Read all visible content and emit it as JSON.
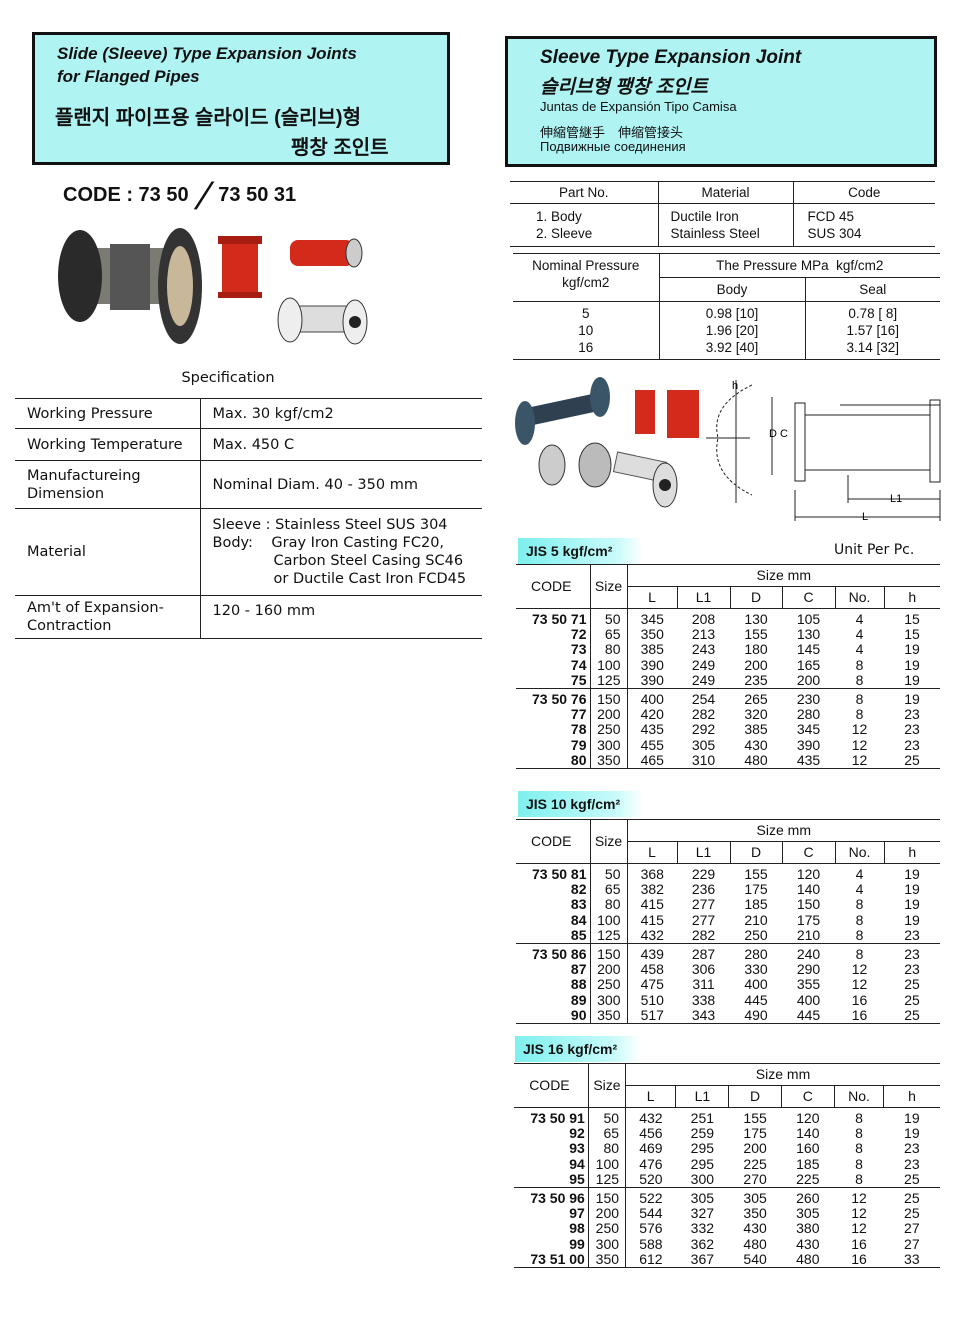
{
  "left_header": {
    "title_en_1": "Slide (Sleeve) Type Expansion Joints",
    "title_en_2": "for Flanged Pipes",
    "title_ko_1": "플랜지 파이프용 슬라이드 (슬리브)형",
    "title_ko_2": "팽창 조인트"
  },
  "code_line": {
    "prefix": "CODE : 73 50",
    "slash": "/",
    "alt": "73 50 31"
  },
  "specification": {
    "title": "Specification",
    "rows": [
      {
        "key": "Working Pressure",
        "value": "Max. 30 kgf/cm2"
      },
      {
        "key": "Working Temperature",
        "value": "Max. 450 C"
      },
      {
        "key": "Manufactureing Dimension",
        "value": "Nominal Diam. 40 - 350 mm"
      },
      {
        "key": "Material",
        "value_lines": [
          "Sleeve : Stainless Steel SUS 304",
          "Body:    Gray Iron Casting FC20,",
          "Carbon Steel Casing SC46",
          "or Ductile Cast Iron FCD45"
        ]
      },
      {
        "key": "Am't of Expansion-Contraction",
        "value": "120 - 160 mm"
      }
    ]
  },
  "right_header": {
    "title_en": "Sleeve Type Expansion Joint",
    "title_ko": "슬리브형 팽창 조인트",
    "title_es": "Juntas de Expansión Tipo Camisa",
    "title_cjk": "伸縮管継手　伸缩管接头",
    "title_ru": "Подвижные соединения"
  },
  "parts": {
    "headers": [
      "Part No.",
      "Material",
      "Code"
    ],
    "rows": [
      [
        "1. Body",
        "Ductile Iron",
        "FCD 45"
      ],
      [
        "2. Sleeve",
        "Stainless Steel",
        "SUS 304"
      ]
    ]
  },
  "pressure": {
    "h1": "Nominal Pressure",
    "h1b": "kgf/cm2",
    "h2": "The Pressure MPa  kgf/cm2",
    "body": "Body",
    "seal": "Seal",
    "rows": [
      [
        "5",
        "0.98 [10]",
        "0.78 [ 8]"
      ],
      [
        "10",
        "1.96 [20]",
        "1.57 [16]"
      ],
      [
        "16",
        "3.92 [40]",
        "3.14 [32]"
      ]
    ]
  },
  "diagram": {
    "labels": [
      "h",
      "D",
      "C",
      "L1",
      "L"
    ]
  },
  "unit": "Unit Per Pc.",
  "colors": {
    "header_bg": "#b0f3f3",
    "jis_bg": "#7ef0ee",
    "product_red": "#d42a1c"
  },
  "col_headers": {
    "code": "CODE",
    "size": "Size",
    "size_mm": "Size mm",
    "cols": [
      "L",
      "L1",
      "D",
      "C",
      "No.",
      "h"
    ]
  },
  "tables": [
    {
      "label": "JIS 5 kgf/cm²",
      "groups": [
        [
          [
            "73 50 71",
            "50",
            "345",
            "208",
            "130",
            "105",
            "4",
            "15"
          ],
          [
            "72",
            "65",
            "350",
            "213",
            "155",
            "130",
            "4",
            "15"
          ],
          [
            "73",
            "80",
            "385",
            "243",
            "180",
            "145",
            "4",
            "19"
          ],
          [
            "74",
            "100",
            "390",
            "249",
            "200",
            "165",
            "8",
            "19"
          ],
          [
            "75",
            "125",
            "390",
            "249",
            "235",
            "200",
            "8",
            "19"
          ]
        ],
        [
          [
            "73 50 76",
            "150",
            "400",
            "254",
            "265",
            "230",
            "8",
            "19"
          ],
          [
            "77",
            "200",
            "420",
            "282",
            "320",
            "280",
            "8",
            "23"
          ],
          [
            "78",
            "250",
            "435",
            "292",
            "385",
            "345",
            "12",
            "23"
          ],
          [
            "79",
            "300",
            "455",
            "305",
            "430",
            "390",
            "12",
            "23"
          ],
          [
            "80",
            "350",
            "465",
            "310",
            "480",
            "435",
            "12",
            "25"
          ]
        ]
      ]
    },
    {
      "label": "JIS 10 kgf/cm²",
      "groups": [
        [
          [
            "73 50 81",
            "50",
            "368",
            "229",
            "155",
            "120",
            "4",
            "19"
          ],
          [
            "82",
            "65",
            "382",
            "236",
            "175",
            "140",
            "4",
            "19"
          ],
          [
            "83",
            "80",
            "415",
            "277",
            "185",
            "150",
            "8",
            "19"
          ],
          [
            "84",
            "100",
            "415",
            "277",
            "210",
            "175",
            "8",
            "19"
          ],
          [
            "85",
            "125",
            "432",
            "282",
            "250",
            "210",
            "8",
            "23"
          ]
        ],
        [
          [
            "73 50 86",
            "150",
            "439",
            "287",
            "280",
            "240",
            "8",
            "23"
          ],
          [
            "87",
            "200",
            "458",
            "306",
            "330",
            "290",
            "12",
            "23"
          ],
          [
            "88",
            "250",
            "475",
            "311",
            "400",
            "355",
            "12",
            "25"
          ],
          [
            "89",
            "300",
            "510",
            "338",
            "445",
            "400",
            "16",
            "25"
          ],
          [
            "90",
            "350",
            "517",
            "343",
            "490",
            "445",
            "16",
            "25"
          ]
        ]
      ]
    },
    {
      "label": "JIS 16 kgf/cm²",
      "groups": [
        [
          [
            "73 50 91",
            "50",
            "432",
            "251",
            "155",
            "120",
            "8",
            "19"
          ],
          [
            "92",
            "65",
            "456",
            "259",
            "175",
            "140",
            "8",
            "19"
          ],
          [
            "93",
            "80",
            "469",
            "295",
            "200",
            "160",
            "8",
            "23"
          ],
          [
            "94",
            "100",
            "476",
            "295",
            "225",
            "185",
            "8",
            "23"
          ],
          [
            "95",
            "125",
            "520",
            "300",
            "270",
            "225",
            "8",
            "25"
          ]
        ],
        [
          [
            "73 50 96",
            "150",
            "522",
            "305",
            "305",
            "260",
            "12",
            "25"
          ],
          [
            "97",
            "200",
            "544",
            "327",
            "350",
            "305",
            "12",
            "25"
          ],
          [
            "98",
            "250",
            "576",
            "332",
            "430",
            "380",
            "12",
            "27"
          ],
          [
            "99",
            "300",
            "588",
            "362",
            "480",
            "430",
            "16",
            "27"
          ],
          [
            "73 51 00",
            "350",
            "612",
            "367",
            "540",
            "480",
            "16",
            "33"
          ]
        ]
      ]
    }
  ]
}
